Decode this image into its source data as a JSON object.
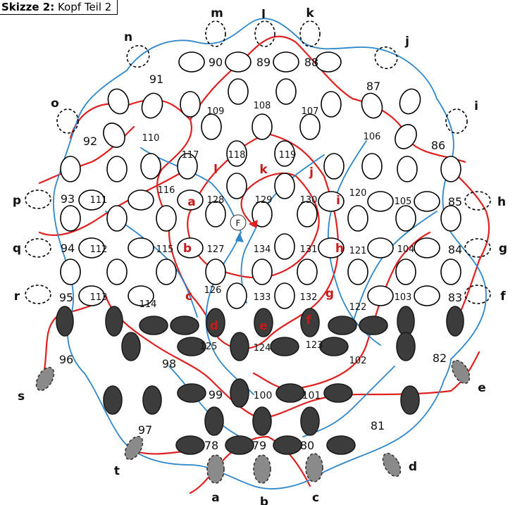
{
  "title": {
    "bold": "Skizze 2:",
    "rest": " Kopf Teil 2"
  },
  "center_label": "F",
  "colors": {
    "red_thread": "#e02020",
    "blue_thread": "#2f86c8",
    "dark_oval": "#3c3c3c",
    "grey_oval": "#8a8a8a",
    "red_letter": "#c81a1a"
  },
  "numbers": [
    "78",
    "79",
    "80",
    "81",
    "82",
    "83",
    "84",
    "85",
    "86",
    "87",
    "88",
    "89",
    "90",
    "91",
    "92",
    "93",
    "94",
    "95",
    "96",
    "97",
    "98",
    "99",
    "100",
    "101",
    "102",
    "103",
    "104",
    "105",
    "106",
    "107",
    "108",
    "109",
    "110",
    "111",
    "112",
    "113",
    "114",
    "115",
    "116",
    "117",
    "118",
    "119",
    "120",
    "121",
    "122",
    "123",
    "124",
    "125",
    "126",
    "127",
    "128",
    "129",
    "130",
    "131",
    "132",
    "133",
    "134"
  ],
  "outer_letters": [
    "a",
    "b",
    "c",
    "d",
    "e",
    "f",
    "g",
    "h",
    "i",
    "j",
    "k",
    "l",
    "m",
    "n",
    "o",
    "p",
    "q",
    "r",
    "s",
    "t"
  ],
  "red_letters": [
    "a",
    "b",
    "c",
    "d",
    "e",
    "f",
    "g",
    "h",
    "i",
    "j",
    "k",
    "l"
  ]
}
